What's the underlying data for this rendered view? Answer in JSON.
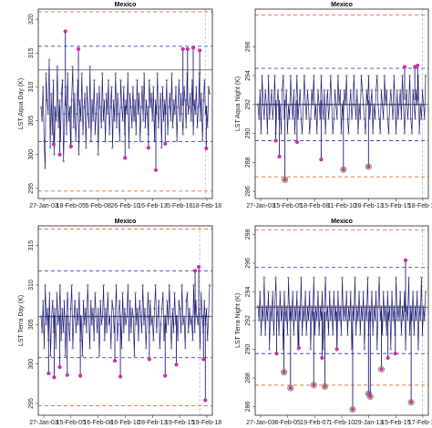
{
  "chart_data": [
    {
      "type": "line",
      "title": "Mexico",
      "ylabel": "LST Aqua Day (K)",
      "x_tick_labels": [
        "27-Jan-03",
        "18-Feb-05",
        "5-Feb-08",
        "26-Feb-10",
        "16-Feb-13",
        "5-Feb-16",
        "18-Feb-18"
      ],
      "x_range": [
        "2003-01-27",
        "2018-02-18"
      ],
      "ylim": [
        293.5,
        321.5
      ],
      "y_ticks": [
        295,
        300,
        305,
        310,
        315,
        320
      ],
      "reference_lines": {
        "orange": [
          294.6,
          321.1
        ],
        "blue": [
          301.9,
          316.0,
          312.5
        ],
        "gray_dashed_vertical": [
          "2017-10-01"
        ]
      },
      "baseline": 307.2,
      "series": [
        {
          "values": [
            307,
            305,
            310,
            302,
            298,
            312,
            308,
            306,
            314,
            301,
            309,
            303,
            311,
            300,
            307,
            305,
            313,
            304,
            308,
            302,
            309,
            311,
            299,
            306,
            310,
            303,
            312,
            305,
            307,
            301,
            308,
            313,
            304,
            309,
            302,
            306,
            311,
            300,
            308,
            305,
            312,
            303,
            307,
            309,
            301,
            310,
            306,
            304,
            313,
            302,
            308,
            305,
            311,
            303,
            306,
            309,
            300,
            310,
            307,
            304,
            312,
            305,
            308,
            302,
            309,
            306,
            311,
            303,
            307,
            310,
            301,
            308,
            305,
            312,
            304,
            309,
            306,
            302,
            311,
            307,
            305,
            310,
            303,
            308,
            306,
            312,
            301,
            309,
            307,
            304,
            310,
            305,
            308,
            303,
            311,
            306,
            309,
            302,
            307,
            310,
            305,
            312,
            304,
            308,
            306,
            303,
            311,
            307,
            309,
            305,
            310,
            302,
            308,
            306,
            312,
            304,
            307,
            309,
            301,
            310,
            305,
            308,
            306,
            311,
            303,
            307,
            309,
            305,
            312,
            304,
            308,
            306,
            310,
            302,
            307,
            311,
            305,
            309,
            306,
            303,
            310,
            308,
            304,
            312,
            306,
            307,
            309,
            305,
            311,
            303,
            308,
            306,
            310,
            304,
            307,
            312,
            305,
            309,
            302,
            308,
            311,
            306,
            307,
            304,
            310,
            309
          ]
        }
      ],
      "highlights": [
        {
          "x": "2004-03-15",
          "y": 301.5
        },
        {
          "x": "2004-10-01",
          "y": 300.0
        },
        {
          "x": "2005-04-01",
          "y": 318.2
        },
        {
          "x": "2005-10-01",
          "y": 301.2
        },
        {
          "x": "2006-06-01",
          "y": 315.6
        },
        {
          "x": "2010-08-01",
          "y": 299.5
        },
        {
          "x": "2012-09-01",
          "y": 301.0
        },
        {
          "x": "2013-05-01",
          "y": 297.7
        },
        {
          "x": "2014-03-01",
          "y": 301.6
        },
        {
          "x": "2015-10-01",
          "y": 315.6
        },
        {
          "x": "2016-03-01",
          "y": 315.6
        },
        {
          "x": "2016-09-01",
          "y": 315.8
        },
        {
          "x": "2017-04-01",
          "y": 315.4
        },
        {
          "x": "2017-11-01",
          "y": 300.9
        }
      ]
    },
    {
      "type": "line",
      "title": "Mexico",
      "ylabel": "LST Aqua Night (K)",
      "x_tick_labels": [
        "27-Jan-03",
        "15-Feb-05",
        "18-Feb-08",
        "11-Feb-10",
        "28-Feb-13",
        "15-Feb-15",
        "18-Feb-18"
      ],
      "x_range": [
        "2003-01-27",
        "2018-02-18"
      ],
      "ylim": [
        285.5,
        298.6
      ],
      "y_ticks": [
        286,
        288,
        290,
        292,
        294,
        296
      ],
      "reference_lines": {
        "orange": [
          287.0,
          298.2
        ],
        "blue": [
          289.5,
          294.5,
          292.0
        ],
        "gray_dashed_vertical": [
          "2017-11-01"
        ]
      },
      "baseline": 292.3,
      "series": [
        {
          "values": [
            292,
            291,
            293,
            290,
            294,
            292,
            291,
            293,
            292,
            290,
            294,
            291,
            292,
            293,
            291,
            292,
            294,
            290,
            292,
            293,
            291,
            292,
            290,
            293,
            294,
            291,
            292,
            293,
            290,
            292,
            291,
            294,
            292,
            291,
            293,
            290,
            292,
            294,
            291,
            292,
            293,
            291,
            290,
            292,
            294,
            292,
            291,
            293,
            292,
            290,
            291,
            293,
            292,
            294,
            291,
            292,
            290,
            293,
            292,
            291,
            294,
            292,
            291,
            293,
            290,
            292,
            293,
            291,
            292,
            294,
            292,
            290,
            291,
            293,
            292,
            291,
            294,
            292,
            293,
            290,
            292,
            291,
            293,
            292,
            294,
            291,
            290,
            292,
            293,
            291,
            292,
            294,
            292,
            291,
            293,
            290,
            292,
            291,
            294,
            293,
            292,
            291,
            290,
            293,
            292,
            294,
            291,
            292,
            293,
            290,
            292,
            291,
            293,
            294,
            292,
            291,
            290,
            293,
            292,
            291,
            294,
            292,
            293,
            291,
            290,
            292,
            293,
            292,
            291,
            294,
            292,
            290,
            293,
            291,
            292,
            293,
            291,
            294,
            292,
            290,
            292,
            293,
            291,
            292,
            294,
            291,
            290,
            293,
            292,
            291,
            293,
            292,
            294,
            290,
            292,
            291,
            293,
            292,
            291,
            294
          ]
        }
      ],
      "highlights": [
        {
          "x": "2004-09-01",
          "y": 289.5
        },
        {
          "x": "2005-01-01",
          "y": 288.4
        },
        {
          "x": "2005-07-01",
          "y": 286.8
        },
        {
          "x": "2006-08-01",
          "y": 289.4
        },
        {
          "x": "2008-10-01",
          "y": 288.2
        },
        {
          "x": "2010-10-01",
          "y": 287.5
        },
        {
          "x": "2013-01-01",
          "y": 287.7
        },
        {
          "x": "2016-04-01",
          "y": 294.6
        },
        {
          "x": "2017-03-01",
          "y": 294.6
        },
        {
          "x": "2017-06-01",
          "y": 294.7
        }
      ]
    },
    {
      "type": "line",
      "title": "Mexico",
      "ylabel": "LST Terra Day (K)",
      "x_tick_labels": [
        "27-Jan-03",
        "15-Feb-05",
        "16-Feb-08",
        "16-Feb-10",
        "28-Feb-13",
        "19-Feb-15",
        "19-Feb-18"
      ],
      "x_range": [
        "2003-01-27",
        "2018-02-18"
      ],
      "ylim": [
        293.5,
        317.5
      ],
      "y_ticks": [
        295,
        300,
        305,
        310,
        315
      ],
      "reference_lines": {
        "orange": [
          294.7,
          317.1
        ],
        "blue": [
          300.8,
          311.8,
          306.0
        ],
        "gray_dashed_vertical": [
          "2017-04-01"
        ]
      },
      "baseline": 306.2,
      "series": [
        {
          "values": [
            306,
            304,
            308,
            302,
            310,
            305,
            307,
            303,
            309,
            301,
            306,
            308,
            304,
            307,
            302,
            309,
            305,
            306,
            310,
            303,
            307,
            304,
            308,
            301,
            306,
            309,
            305,
            303,
            307,
            310,
            302,
            306,
            308,
            304,
            307,
            305,
            309,
            303,
            306,
            301,
            308,
            305,
            307,
            304,
            310,
            306,
            302,
            308,
            305,
            307,
            303,
            309,
            306,
            304,
            307,
            301,
            308,
            305,
            306,
            310,
            303,
            307,
            304,
            309,
            305,
            306,
            302,
            308,
            307,
            304,
            306,
            310,
            303,
            305,
            308,
            306,
            302,
            309,
            304,
            307,
            305,
            306,
            310,
            303,
            308,
            304,
            307,
            306,
            301,
            309,
            305,
            307,
            303,
            308,
            306,
            304,
            310,
            305,
            307,
            302,
            306,
            309,
            304,
            308,
            305,
            306,
            303,
            307,
            310,
            304,
            306,
            308,
            302,
            305,
            307,
            309,
            303,
            306,
            304,
            308,
            305,
            310,
            306,
            302,
            307,
            304,
            309,
            305,
            306,
            303,
            308,
            307,
            304,
            310,
            305,
            306,
            302,
            308,
            309,
            304,
            307,
            305,
            306,
            303,
            310,
            304,
            308,
            306,
            305,
            307,
            302,
            309,
            306,
            304,
            308,
            305,
            307,
            303,
            306,
            310
          ]
        }
      ],
      "highlights": [
        {
          "x": "2003-10-01",
          "y": 298.8
        },
        {
          "x": "2004-04-01",
          "y": 298.3
        },
        {
          "x": "2004-10-01",
          "y": 299.6
        },
        {
          "x": "2005-06-01",
          "y": 298.6
        },
        {
          "x": "2006-08-01",
          "y": 298.5
        },
        {
          "x": "2009-09-01",
          "y": 300.4
        },
        {
          "x": "2010-03-01",
          "y": 298.4
        },
        {
          "x": "2012-10-01",
          "y": 300.6
        },
        {
          "x": "2014-03-01",
          "y": 298.5
        },
        {
          "x": "2015-03-01",
          "y": 299.9
        },
        {
          "x": "2016-11-01",
          "y": 311.8
        },
        {
          "x": "2017-03-01",
          "y": 312.3
        },
        {
          "x": "2017-08-01",
          "y": 300.6
        },
        {
          "x": "2017-10-01",
          "y": 295.4
        }
      ]
    },
    {
      "type": "line",
      "title": "Mexico",
      "ylabel": "LST Terra Night (K)",
      "x_tick_labels": [
        "27-Jan-03",
        "6-Feb-05",
        "19-Feb-07",
        "1-Feb-10",
        "29-Jan-13",
        "15-Feb-15",
        "17-Feb-18"
      ],
      "x_range": [
        "2003-01-27",
        "2018-02-18"
      ],
      "ylim": [
        285.4,
        298.6
      ],
      "y_ticks": [
        286,
        288,
        290,
        292,
        294,
        296,
        298
      ],
      "reference_lines": {
        "orange": [
          287.5,
          298.3
        ],
        "blue": [
          289.7,
          295.7,
          292.9
        ],
        "gray_dashed_vertical": [
          "2017-11-01"
        ]
      },
      "baseline": 292.6,
      "series": [
        {
          "values": [
            293,
            292,
            294,
            291,
            293,
            292,
            295,
            291,
            293,
            292,
            294,
            290,
            293,
            292,
            294,
            291,
            293,
            295,
            292,
            293,
            291,
            294,
            292,
            293,
            290,
            294,
            292,
            293,
            291,
            295,
            292,
            293,
            292,
            294,
            291,
            293,
            292,
            294,
            290,
            293,
            292,
            295,
            291,
            293,
            292,
            294,
            291,
            293,
            292,
            294,
            290,
            293,
            292,
            295,
            291,
            293,
            292,
            294,
            291,
            293,
            292,
            294,
            290,
            293,
            295,
            292,
            293,
            291,
            294,
            292,
            293,
            291,
            294,
            292,
            293,
            290,
            294,
            292,
            293,
            291,
            295,
            292,
            293,
            292,
            294,
            291,
            293,
            292,
            294,
            290,
            293,
            292,
            295,
            291,
            293,
            292,
            294,
            291,
            293,
            292,
            294,
            290,
            293,
            292,
            295,
            291,
            293,
            292,
            294,
            291,
            293,
            292,
            294,
            290,
            293,
            295,
            292,
            293,
            291,
            294,
            292,
            293,
            291,
            294,
            292,
            293,
            290,
            294,
            292,
            293,
            291,
            295,
            292,
            293,
            292,
            294,
            291,
            293,
            292,
            294,
            290,
            293,
            292,
            295,
            291,
            293,
            292,
            294,
            291,
            293,
            292,
            294,
            290,
            293,
            292,
            295,
            291,
            293,
            292,
            294
          ]
        }
      ],
      "highlights": [
        {
          "x": "2004-10-01",
          "y": 289.7
        },
        {
          "x": "2005-06-01",
          "y": 288.4
        },
        {
          "x": "2006-01-01",
          "y": 287.3
        },
        {
          "x": "2006-10-01",
          "y": 290.1
        },
        {
          "x": "2008-02-01",
          "y": 287.5
        },
        {
          "x": "2008-11-01",
          "y": 289.4
        },
        {
          "x": "2009-02-01",
          "y": 287.4
        },
        {
          "x": "2010-03-01",
          "y": 290.0
        },
        {
          "x": "2011-08-01",
          "y": 285.8
        },
        {
          "x": "2013-01-01",
          "y": 286.9
        },
        {
          "x": "2013-03-01",
          "y": 286.7
        },
        {
          "x": "2014-03-01",
          "y": 288.6
        },
        {
          "x": "2014-10-01",
          "y": 289.4
        },
        {
          "x": "2015-06-01",
          "y": 289.7
        },
        {
          "x": "2016-05-01",
          "y": 296.2
        },
        {
          "x": "2016-11-01",
          "y": 286.3
        }
      ]
    }
  ],
  "colors": {
    "series": "#1f1f7a",
    "highlight": "#cc2fa8",
    "highlight_ring": "#7a8a4a",
    "marker": "#3a3a3a",
    "orange_line": "#e36a2e",
    "blue_line": "#4a4ac0",
    "baseline": "#333333",
    "vertical_marker": "#bbbbbb"
  }
}
